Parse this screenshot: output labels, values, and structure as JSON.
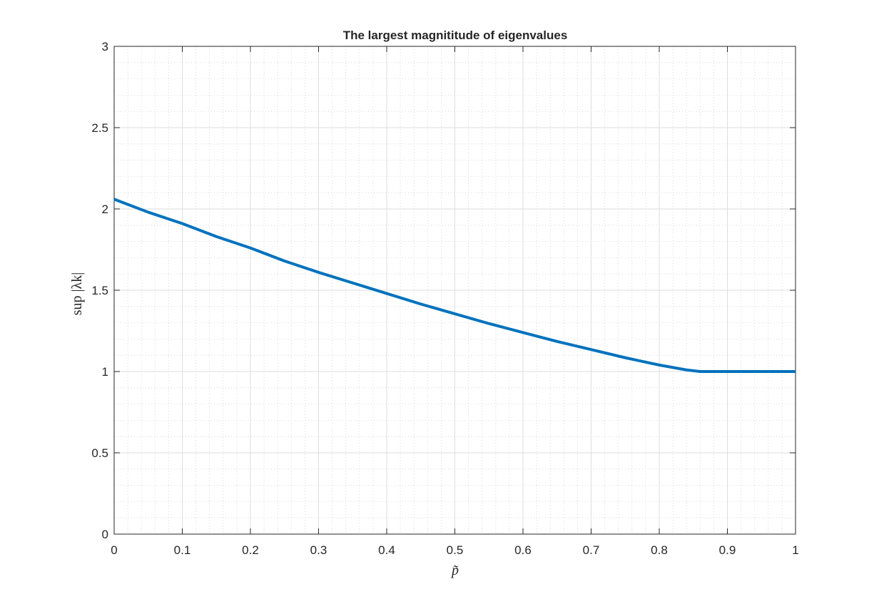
{
  "chart_data": {
    "type": "line",
    "title": "The largest magnititude of eigenvalues",
    "xlabel": "p̃",
    "ylabel": "sup |λk|",
    "xlim": [
      0,
      1
    ],
    "ylim": [
      0,
      3
    ],
    "xticks": [
      0,
      0.1,
      0.2,
      0.3,
      0.4,
      0.5,
      0.6,
      0.7,
      0.8,
      0.9,
      1
    ],
    "yticks": [
      0,
      0.5,
      1,
      1.5,
      2,
      2.5,
      3
    ],
    "xtick_labels": [
      "0",
      "0.1",
      "0.2",
      "0.3",
      "0.4",
      "0.5",
      "0.6",
      "0.7",
      "0.8",
      "0.9",
      "1"
    ],
    "ytick_labels": [
      "0",
      "0.5",
      "1",
      "1.5",
      "2",
      "2.5",
      "3"
    ],
    "grid": true,
    "minor_grid": true,
    "line_color": "#0072bd",
    "series": [
      {
        "x": [
          0,
          0.05,
          0.1,
          0.15,
          0.2,
          0.25,
          0.3,
          0.35,
          0.4,
          0.45,
          0.5,
          0.55,
          0.6,
          0.65,
          0.7,
          0.75,
          0.8,
          0.84,
          0.86,
          0.9,
          0.95,
          1.0
        ],
        "values": [
          2.06,
          1.98,
          1.91,
          1.83,
          1.76,
          1.68,
          1.61,
          1.545,
          1.48,
          1.415,
          1.355,
          1.295,
          1.24,
          1.185,
          1.135,
          1.085,
          1.04,
          1.01,
          1.0,
          1.0,
          1.0,
          1.0
        ]
      }
    ]
  }
}
